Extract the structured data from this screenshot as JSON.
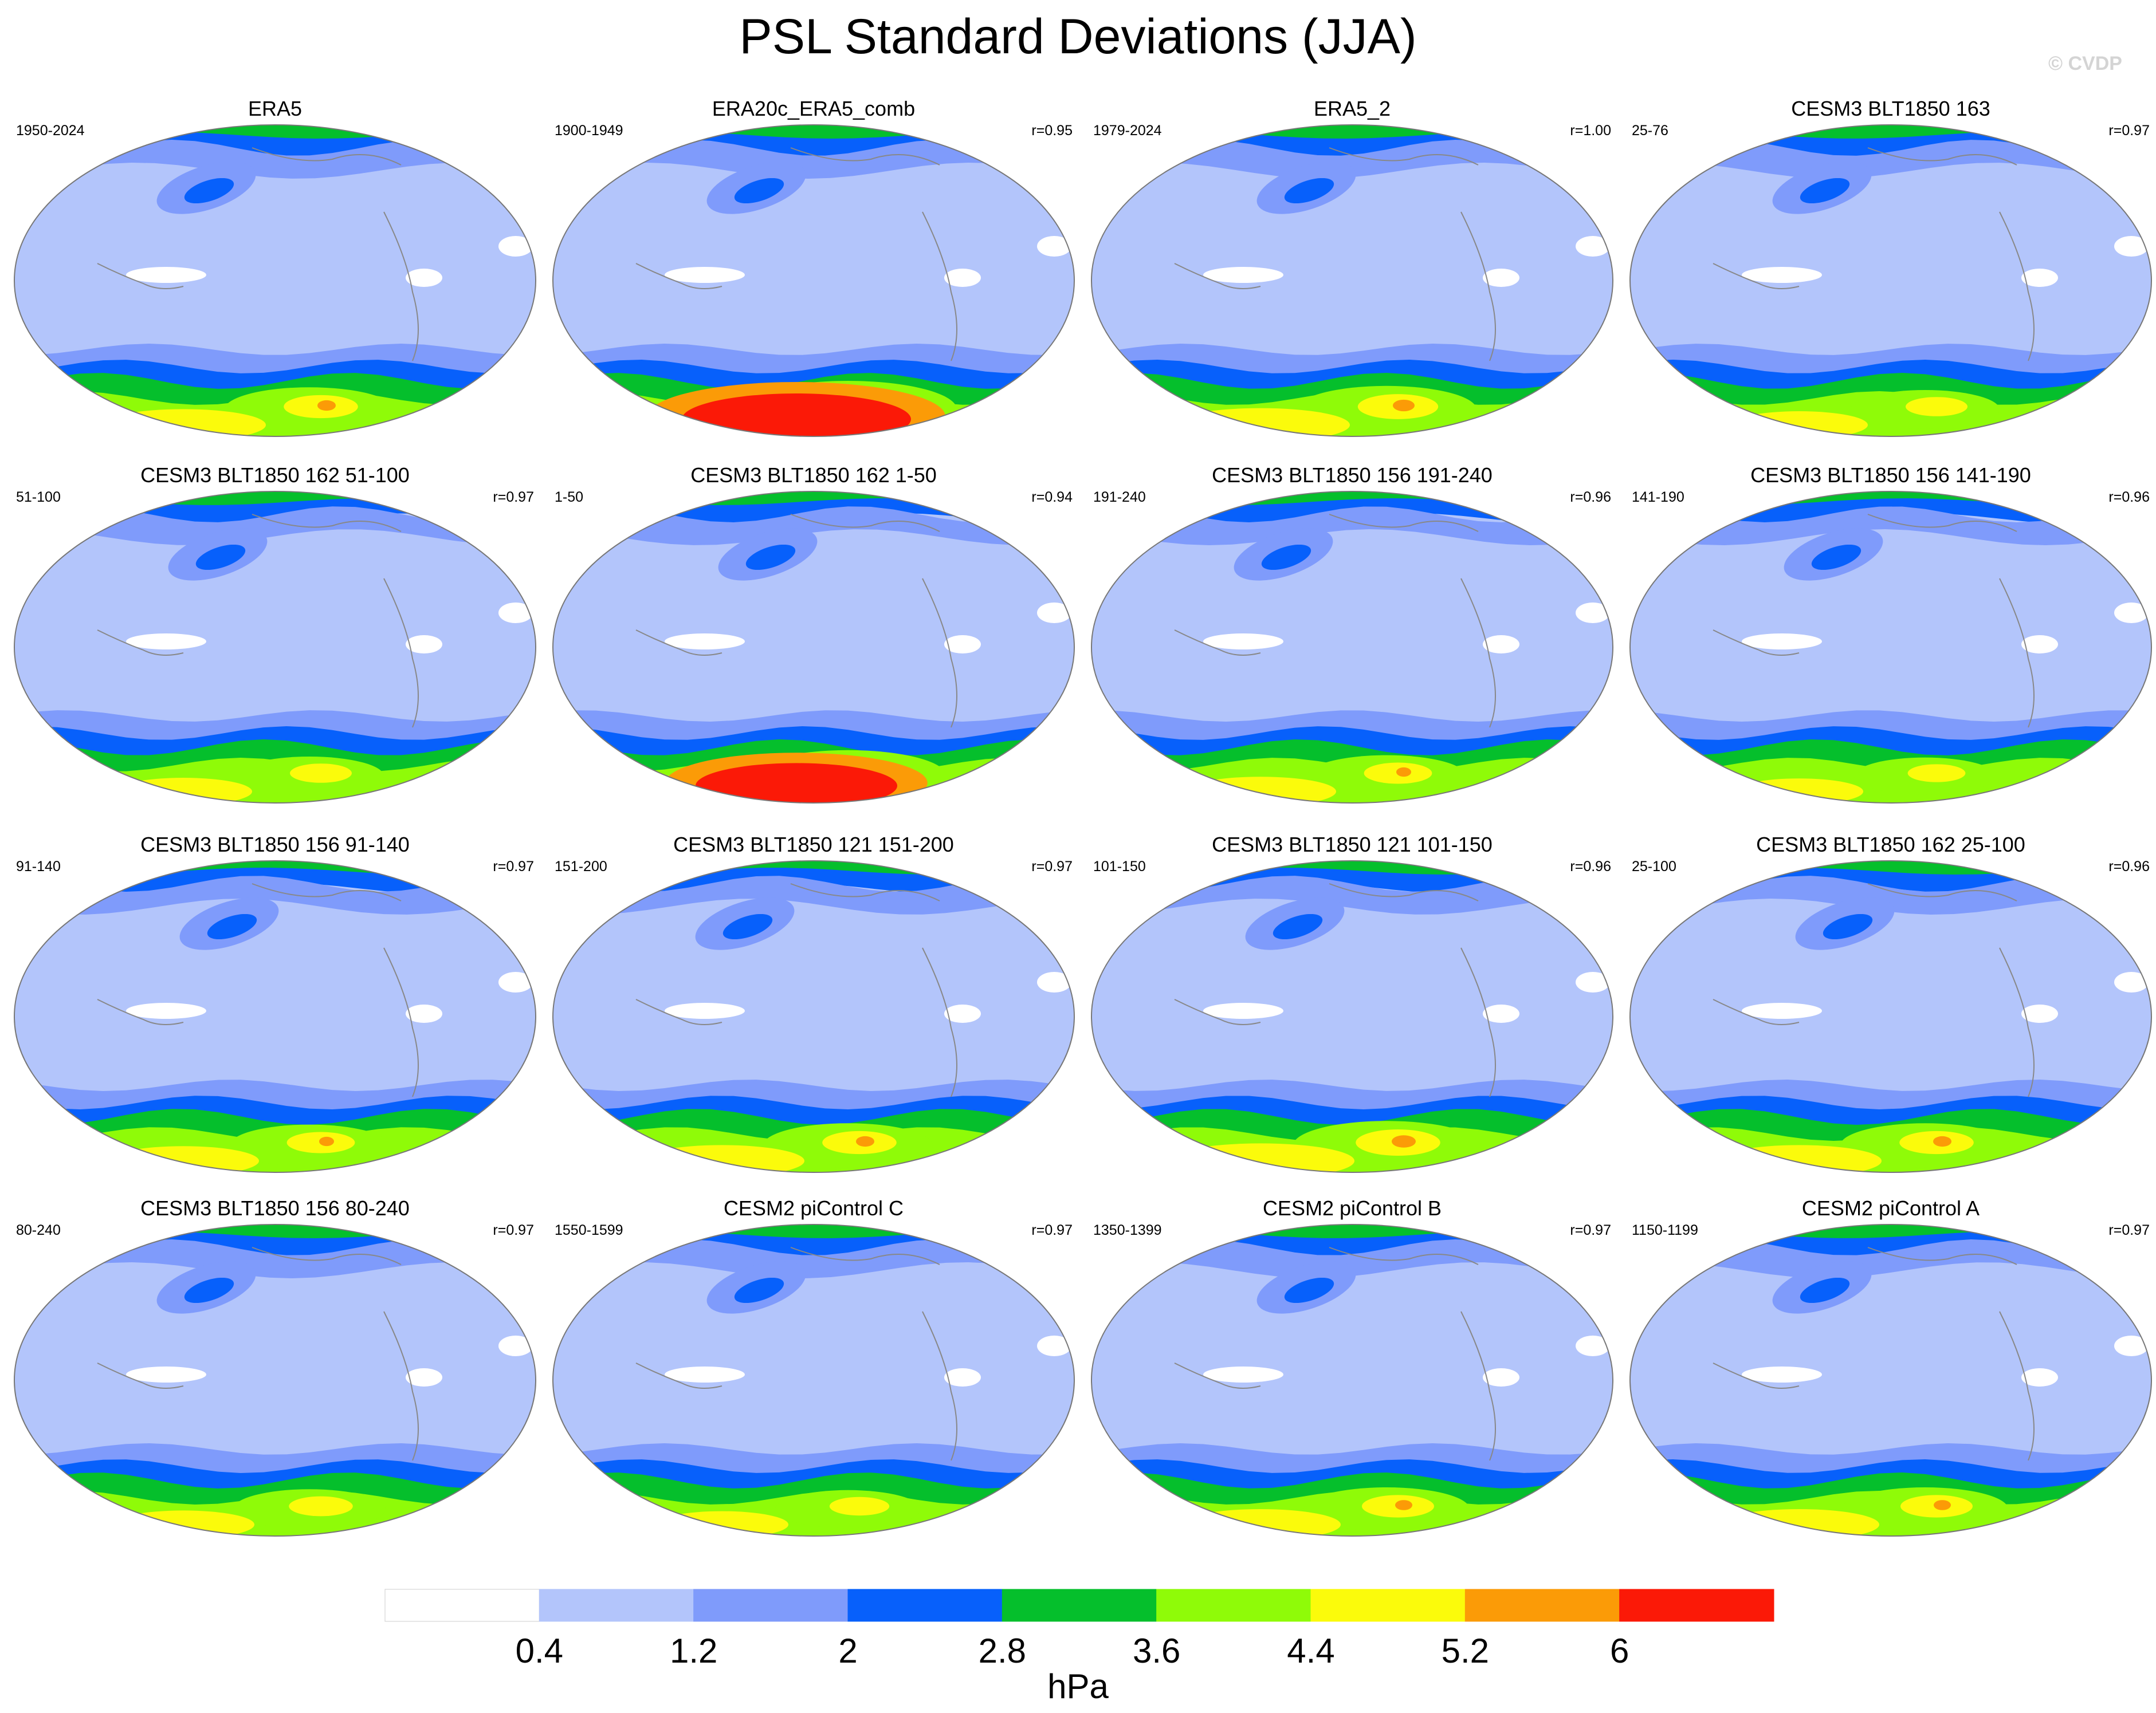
{
  "title": "PSL Standard Deviations (JJA)",
  "watermark": "© CVDP",
  "units": "hPa",
  "colorbar": {
    "colors": [
      "#ffffff",
      "#b3c5fb",
      "#7f9bfb",
      "#0760fb",
      "#05bf2c",
      "#8ffb08",
      "#fbfb0b",
      "#fb9b07",
      "#fb1907"
    ],
    "tick_labels": [
      "0.4",
      "1.2",
      "2",
      "2.8",
      "3.6",
      "4.4",
      "5.2",
      "6"
    ]
  },
  "panels": [
    {
      "title": "ERA5",
      "period": "1950-2024",
      "r": "",
      "intensity": 0.72
    },
    {
      "title": "ERA20c_ERA5_comb",
      "period": "1900-1949",
      "r": "r=0.95",
      "intensity": 1.0
    },
    {
      "title": "ERA5_2",
      "period": "1979-2024",
      "r": "r=1.00",
      "intensity": 0.78
    },
    {
      "title": "CESM3 BLT1850 163",
      "period": "25-76",
      "r": "r=0.97",
      "intensity": 0.6
    },
    {
      "title": "CESM3 BLT1850 162 51-100",
      "period": "51-100",
      "r": "r=0.97",
      "intensity": 0.6
    },
    {
      "title": "CESM3 BLT1850 162 1-50",
      "period": "1-50",
      "r": "r=0.94",
      "intensity": 0.88
    },
    {
      "title": "CESM3 BLT1850 156 191-240",
      "period": "191-240",
      "r": "r=0.96",
      "intensity": 0.66
    },
    {
      "title": "CESM3 BLT1850 156 141-190",
      "period": "141-190",
      "r": "r=0.96",
      "intensity": 0.56
    },
    {
      "title": "CESM3 BLT1850 156 91-140",
      "period": "91-140",
      "r": "r=0.97",
      "intensity": 0.66
    },
    {
      "title": "CESM3 BLT1850 121 151-200",
      "period": "151-200",
      "r": "r=0.97",
      "intensity": 0.72
    },
    {
      "title": "CESM3 BLT1850 121 101-150",
      "period": "101-150",
      "r": "r=0.96",
      "intensity": 0.82
    },
    {
      "title": "CESM3 BLT1850 162 25-100",
      "period": "25-100",
      "r": "r=0.96",
      "intensity": 0.72
    },
    {
      "title": "CESM3 BLT1850 156 80-240",
      "period": "80-240",
      "r": "r=0.97",
      "intensity": 0.62
    },
    {
      "title": "CESM2 piControl C",
      "period": "1550-1599",
      "r": "r=0.97",
      "intensity": 0.58
    },
    {
      "title": "CESM2 piControl B",
      "period": "1350-1399",
      "r": "r=0.97",
      "intensity": 0.7
    },
    {
      "title": "CESM2 piControl A",
      "period": "1150-1199",
      "r": "r=0.97",
      "intensity": 0.7
    }
  ]
}
